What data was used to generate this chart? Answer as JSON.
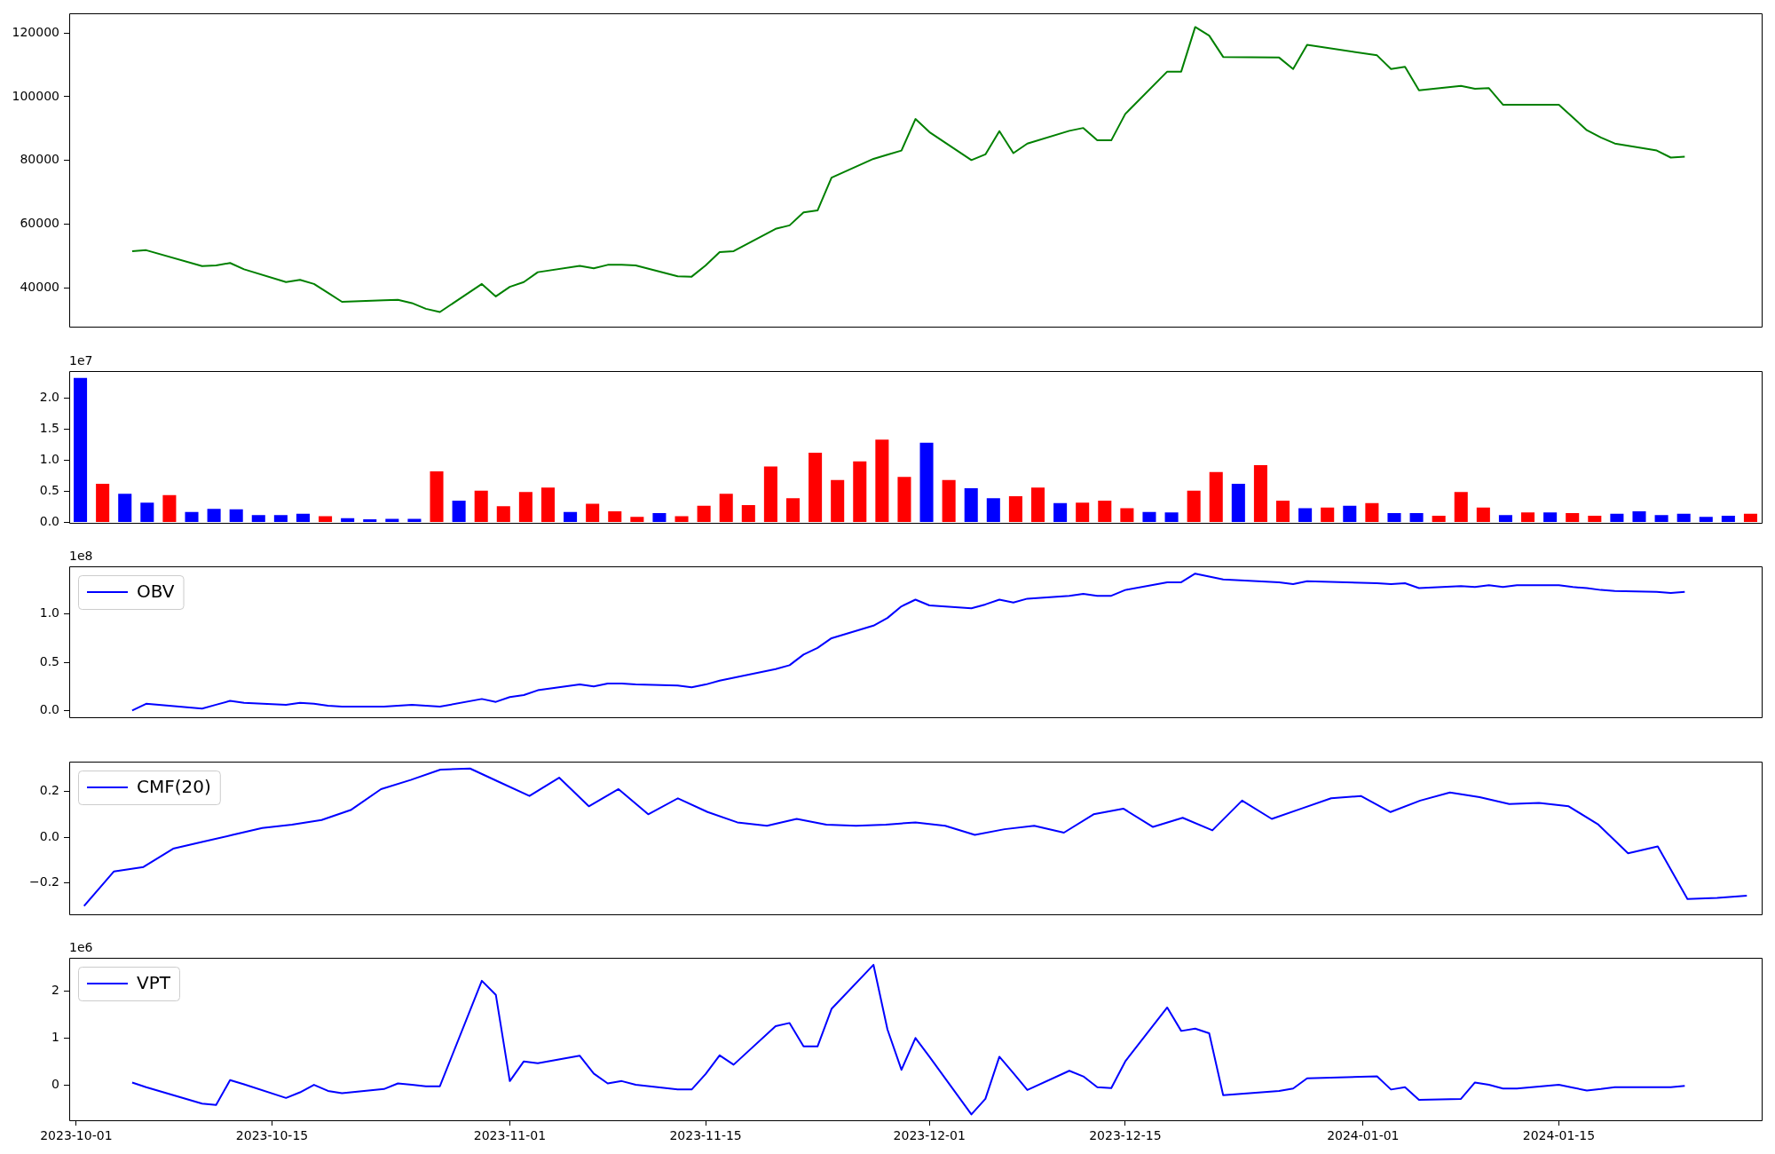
{
  "chart_data": [
    {
      "type": "line",
      "x": [
        "2023-10-05",
        "2023-10-06",
        "2023-10-10",
        "2023-10-11",
        "2023-10-12",
        "2023-10-13",
        "2023-10-16",
        "2023-10-17",
        "2023-10-18",
        "2023-10-19",
        "2023-10-20",
        "2023-10-23",
        "2023-10-24",
        "2023-10-25",
        "2023-10-26",
        "2023-10-27",
        "2023-10-30",
        "2023-10-31",
        "2023-11-01",
        "2023-11-02",
        "2023-11-03",
        "2023-11-06",
        "2023-11-07",
        "2023-11-08",
        "2023-11-09",
        "2023-11-10",
        "2023-11-13",
        "2023-11-14",
        "2023-11-15",
        "2023-11-16",
        "2023-11-17",
        "2023-11-20",
        "2023-11-21",
        "2023-11-22",
        "2023-11-23",
        "2023-11-24",
        "2023-11-27",
        "2023-11-28",
        "2023-11-29",
        "2023-11-30",
        "2023-12-01",
        "2023-12-04",
        "2023-12-05",
        "2023-12-06",
        "2023-12-07",
        "2023-12-08",
        "2023-12-11",
        "2023-12-12",
        "2023-12-13",
        "2023-12-14",
        "2023-12-15",
        "2023-12-18",
        "2023-12-19",
        "2023-12-20",
        "2023-12-21",
        "2023-12-22",
        "2023-12-26",
        "2023-12-27",
        "2023-12-28",
        "2024-01-02",
        "2024-01-03",
        "2024-01-04",
        "2024-01-05",
        "2024-01-08",
        "2024-01-09",
        "2024-01-10",
        "2024-01-11",
        "2024-01-12",
        "2024-01-15",
        "2024-01-16",
        "2024-01-17",
        "2024-01-18",
        "2024-01-19",
        "2024-01-22",
        "2024-01-23",
        "2024-01-24"
      ],
      "series": [
        {
          "color": "#008000",
          "values": [
            51500,
            51800,
            46800,
            47000,
            47800,
            45800,
            41800,
            42500,
            41200,
            38400,
            35600,
            36100,
            36200,
            35200,
            33400,
            32400,
            41200,
            37300,
            40300,
            41800,
            44900,
            46900,
            46100,
            47200,
            47200,
            47000,
            43600,
            43500,
            47000,
            51200,
            51500,
            58500,
            59600,
            63700,
            64300,
            74600,
            80500,
            81800,
            83100,
            93000,
            88900,
            80100,
            81900,
            89200,
            82300,
            85300,
            89300,
            90200,
            86300,
            86300,
            94600,
            107900,
            107900,
            121900,
            119200,
            112500,
            112300,
            108700,
            116300,
            113000,
            108700,
            109400,
            102000,
            103400,
            102500,
            102700,
            97500,
            97500,
            97500,
            93500,
            89500,
            87200,
            85300,
            83100,
            80900,
            81200
          ]
        }
      ],
      "xlim": [
        "2023-09-30T12:00",
        "2024-01-29T12:00"
      ],
      "ylim": [
        27900,
        126200
      ],
      "yticks": [
        40000,
        60000,
        80000,
        100000,
        120000
      ],
      "tick_labels": "y"
    },
    {
      "type": "bar",
      "categories": [
        null,
        null,
        null,
        null,
        null,
        null,
        null,
        null,
        null,
        null,
        null,
        null,
        null,
        null,
        null,
        null,
        null,
        null,
        null,
        null,
        null,
        null,
        null,
        null,
        null,
        null,
        null,
        null,
        null,
        null,
        null,
        null,
        null,
        null,
        null,
        null,
        null,
        null,
        null,
        null,
        null,
        null,
        null,
        null,
        null,
        null,
        null,
        null,
        null,
        null,
        null,
        null,
        null,
        null,
        null,
        null,
        null,
        null,
        null,
        null,
        null,
        null,
        null,
        null,
        null,
        null,
        null,
        null,
        null,
        null,
        null,
        null,
        null,
        null,
        null,
        null
      ],
      "values": [
        2.32,
        0.62,
        0.46,
        0.32,
        0.44,
        0.17,
        0.22,
        0.21,
        0.12,
        0.12,
        0.14,
        0.1,
        0.07,
        0.05,
        0.06,
        0.06,
        0.82,
        0.35,
        0.51,
        0.26,
        0.49,
        0.56,
        0.17,
        0.3,
        0.18,
        0.09,
        0.15,
        0.1,
        0.27,
        0.46,
        0.28,
        0.9,
        0.39,
        1.12,
        0.68,
        0.98,
        1.33,
        0.73,
        1.28,
        0.68,
        0.55,
        0.39,
        0.42,
        0.56,
        0.31,
        0.32,
        0.35,
        0.23,
        0.17,
        0.16,
        0.51,
        0.81,
        0.62,
        0.92,
        0.35,
        0.23,
        0.24,
        0.27,
        0.31,
        0.15,
        0.15,
        0.11,
        0.49,
        0.24,
        0.12,
        0.16,
        0.16,
        0.15,
        0.11,
        0.14,
        0.18,
        0.12,
        0.14,
        0.09,
        0.11,
        0.14
      ],
      "colors": [
        "#0000ff",
        "#ff0000",
        "#0000ff",
        "#0000ff",
        "#ff0000",
        "#0000ff",
        "#0000ff",
        "#0000ff",
        "#0000ff",
        "#0000ff",
        "#0000ff",
        "#ff0000",
        "#0000ff",
        "#0000ff",
        "#0000ff",
        "#0000ff",
        "#ff0000",
        "#0000ff",
        "#ff0000",
        "#ff0000",
        "#ff0000",
        "#ff0000",
        "#0000ff",
        "#ff0000",
        "#ff0000",
        "#ff0000",
        "#0000ff",
        "#ff0000",
        "#ff0000",
        "#ff0000",
        "#ff0000",
        "#ff0000",
        "#ff0000",
        "#ff0000",
        "#ff0000",
        "#ff0000",
        "#ff0000",
        "#ff0000",
        "#0000ff",
        "#ff0000",
        "#0000ff",
        "#0000ff",
        "#ff0000",
        "#ff0000",
        "#0000ff",
        "#ff0000",
        "#ff0000",
        "#ff0000",
        "#0000ff",
        "#0000ff",
        "#ff0000",
        "#ff0000",
        "#0000ff",
        "#ff0000",
        "#ff0000",
        "#0000ff",
        "#ff0000",
        "#0000ff",
        "#ff0000",
        "#0000ff",
        "#0000ff",
        "#ff0000",
        "#ff0000",
        "#ff0000",
        "#0000ff",
        "#ff0000",
        "#0000ff",
        "#ff0000",
        "#ff0000",
        "#0000ff",
        "#0000ff",
        "#0000ff",
        "#0000ff",
        "#0000ff",
        "#0000ff",
        "#ff0000"
      ],
      "ylim": [
        0,
        2.43
      ],
      "yticks": [
        {
          "value": 0,
          "label": "0.0"
        },
        {
          "value": 0.5,
          "label": "0.5"
        },
        {
          "value": 1,
          "label": "1.0"
        },
        {
          "value": 1.5,
          "label": "1.5"
        },
        {
          "value": 2,
          "label": "2.0"
        }
      ],
      "annotations": [
        "1e7"
      ],
      "tick_labels": "y"
    },
    {
      "type": "line",
      "x": [
        "2023-10-05",
        "2023-10-06",
        "2023-10-10",
        "2023-10-11",
        "2023-10-12",
        "2023-10-13",
        "2023-10-16",
        "2023-10-17",
        "2023-10-18",
        "2023-10-19",
        "2023-10-20",
        "2023-10-23",
        "2023-10-24",
        "2023-10-25",
        "2023-10-26",
        "2023-10-27",
        "2023-10-30",
        "2023-10-31",
        "2023-11-01",
        "2023-11-02",
        "2023-11-03",
        "2023-11-06",
        "2023-11-07",
        "2023-11-08",
        "2023-11-09",
        "2023-11-10",
        "2023-11-13",
        "2023-11-14",
        "2023-11-15",
        "2023-11-16",
        "2023-11-17",
        "2023-11-20",
        "2023-11-21",
        "2023-11-22",
        "2023-11-23",
        "2023-11-24",
        "2023-11-27",
        "2023-11-28",
        "2023-11-29",
        "2023-11-30",
        "2023-12-01",
        "2023-12-04",
        "2023-12-05",
        "2023-12-06",
        "2023-12-07",
        "2023-12-08",
        "2023-12-11",
        "2023-12-12",
        "2023-12-13",
        "2023-12-14",
        "2023-12-15",
        "2023-12-18",
        "2023-12-19",
        "2023-12-20",
        "2023-12-21",
        "2023-12-22",
        "2023-12-26",
        "2023-12-27",
        "2023-12-28",
        "2024-01-02",
        "2024-01-03",
        "2024-01-04",
        "2024-01-05",
        "2024-01-08",
        "2024-01-09",
        "2024-01-10",
        "2024-01-11",
        "2024-01-12",
        "2024-01-15",
        "2024-01-16",
        "2024-01-17",
        "2024-01-18",
        "2024-01-19",
        "2024-01-22",
        "2024-01-23",
        "2024-01-24"
      ],
      "series": [
        {
          "name": "OBV",
          "color": "#0000ff",
          "values": [
            0,
            0.07,
            0.02,
            0.06,
            0.1,
            0.08,
            0.06,
            0.08,
            0.07,
            0.05,
            0.04,
            0.04,
            0.05,
            0.06,
            0.05,
            0.04,
            0.12,
            0.09,
            0.14,
            0.16,
            0.21,
            0.27,
            0.25,
            0.28,
            0.28,
            0.27,
            0.26,
            0.24,
            0.27,
            0.31,
            0.34,
            0.43,
            0.47,
            0.58,
            0.65,
            0.75,
            0.88,
            0.96,
            1.08,
            1.15,
            1.09,
            1.06,
            1.1,
            1.15,
            1.12,
            1.16,
            1.19,
            1.21,
            1.19,
            1.19,
            1.25,
            1.33,
            1.33,
            1.42,
            1.39,
            1.36,
            1.33,
            1.31,
            1.34,
            1.32,
            1.31,
            1.32,
            1.27,
            1.29,
            1.28,
            1.3,
            1.28,
            1.3,
            1.3,
            1.28,
            1.27,
            1.25,
            1.24,
            1.23,
            1.22,
            1.23
          ]
        }
      ],
      "xlim": [
        "2023-09-30T12:00",
        "2024-01-29T12:00"
      ],
      "ylim": [
        -0.066,
        1.495
      ],
      "yticks": [
        {
          "value": 0,
          "label": "0.0"
        },
        {
          "value": 0.5,
          "label": "0.5"
        },
        {
          "value": 1,
          "label": "1.0"
        }
      ],
      "annotations": [
        "1e8"
      ],
      "legend": "top left",
      "tick_labels": "y"
    },
    {
      "type": "line",
      "categories": [
        null,
        null,
        null,
        null,
        null,
        null,
        null,
        null,
        null,
        null,
        null,
        null,
        null,
        null,
        null,
        null,
        null,
        null,
        null,
        null,
        null,
        null,
        null,
        null,
        null,
        null,
        null,
        null,
        null,
        null,
        null,
        null,
        null,
        null,
        null,
        null,
        null,
        null,
        null,
        null,
        null,
        null,
        null,
        null,
        null,
        null,
        null,
        null,
        null,
        null,
        null,
        null,
        null,
        null,
        null,
        null,
        null
      ],
      "series": [
        {
          "name": "CMF(20)",
          "color": "#0000ff",
          "values": [
            -0.3,
            -0.15,
            -0.13,
            -0.05,
            -0.02,
            0.01,
            0.04,
            0.055,
            0.075,
            0.12,
            0.21,
            0.25,
            0.295,
            0.3,
            0.24,
            0.18,
            0.26,
            0.135,
            0.21,
            0.1,
            0.17,
            0.11,
            0.065,
            0.05,
            0.08,
            0.055,
            0.05,
            0.055,
            0.065,
            0.05,
            0.01,
            0.035,
            0.05,
            0.02,
            0.1,
            0.125,
            0.045,
            0.085,
            0.03,
            0.16,
            0.08,
            0.125,
            0.17,
            0.18,
            0.11,
            0.16,
            0.195,
            0.175,
            0.145,
            0.15,
            0.135,
            0.055,
            -0.07,
            -0.04,
            -0.27,
            -0.265,
            -0.255
          ]
        }
      ],
      "ylim": [
        -0.335,
        0.33
      ],
      "yticks": [
        {
          "value": -0.2,
          "label": "−0.2"
        },
        {
          "value": 0,
          "label": "0.0"
        },
        {
          "value": 0.2,
          "label": "0.2"
        }
      ],
      "legend": "top left",
      "tick_labels": "y"
    },
    {
      "type": "line",
      "x": [
        "2023-10-05",
        "2023-10-06",
        "2023-10-10",
        "2023-10-11",
        "2023-10-12",
        "2023-10-13",
        "2023-10-16",
        "2023-10-17",
        "2023-10-18",
        "2023-10-19",
        "2023-10-20",
        "2023-10-23",
        "2023-10-24",
        "2023-10-25",
        "2023-10-26",
        "2023-10-27",
        "2023-10-30",
        "2023-10-31",
        "2023-11-01",
        "2023-11-02",
        "2023-11-03",
        "2023-11-06",
        "2023-11-07",
        "2023-11-08",
        "2023-11-09",
        "2023-11-10",
        "2023-11-13",
        "2023-11-14",
        "2023-11-15",
        "2023-11-16",
        "2023-11-17",
        "2023-11-20",
        "2023-11-21",
        "2023-11-22",
        "2023-11-23",
        "2023-11-24",
        "2023-11-27",
        "2023-11-28",
        "2023-11-29",
        "2023-11-30",
        "2023-12-01",
        "2023-12-04",
        "2023-12-05",
        "2023-12-06",
        "2023-12-07",
        "2023-12-08",
        "2023-12-11",
        "2023-12-12",
        "2023-12-13",
        "2023-12-14",
        "2023-12-15",
        "2023-12-18",
        "2023-12-19",
        "2023-12-20",
        "2023-12-21",
        "2023-12-22",
        "2023-12-26",
        "2023-12-27",
        "2023-12-28",
        "2024-01-02",
        "2024-01-03",
        "2024-01-04",
        "2024-01-05",
        "2024-01-08",
        "2024-01-09",
        "2024-01-10",
        "2024-01-11",
        "2024-01-12",
        "2024-01-15",
        "2024-01-16",
        "2024-01-17",
        "2024-01-18",
        "2024-01-19",
        "2024-01-22",
        "2024-01-23",
        "2024-01-24"
      ],
      "series": [
        {
          "name": "VPT",
          "color": "#0000ff",
          "values": [
            0.05,
            -0.05,
            -0.4,
            -0.43,
            0.1,
            0.01,
            -0.28,
            -0.16,
            0,
            -0.13,
            -0.18,
            -0.09,
            0.03,
            0,
            -0.03,
            -0.03,
            2.22,
            1.92,
            0.08,
            0.5,
            0.46,
            0.62,
            0.24,
            0.03,
            0.08,
            0,
            -0.1,
            -0.1,
            0.23,
            0.63,
            0.43,
            1.25,
            1.32,
            0.82,
            0.82,
            1.62,
            2.56,
            1.18,
            0.32,
            1,
            0.6,
            -0.63,
            -0.3,
            0.6,
            0.25,
            -0.11,
            0.3,
            0.18,
            -0.05,
            -0.07,
            0.5,
            1.65,
            1.15,
            1.2,
            1.1,
            -0.22,
            -0.13,
            -0.08,
            0.14,
            0.18,
            -0.1,
            -0.05,
            -0.32,
            -0.3,
            0.05,
            0,
            -0.08,
            -0.08,
            0,
            -0.06,
            -0.12,
            -0.09,
            -0.05,
            -0.05,
            -0.05,
            -0.02
          ]
        }
      ],
      "xlim": [
        "2023-09-30T12:00",
        "2024-01-29T12:00"
      ],
      "xticks": [
        "2023-10-01",
        "2023-10-15",
        "2023-11-01",
        "2023-11-15",
        "2023-12-01",
        "2023-12-15",
        "2024-01-01",
        "2024-01-15"
      ],
      "ylim": [
        -0.756,
        2.71
      ],
      "yticks": [
        0,
        1,
        2
      ],
      "annotations": [
        "1e6"
      ],
      "legend": "top left"
    }
  ]
}
